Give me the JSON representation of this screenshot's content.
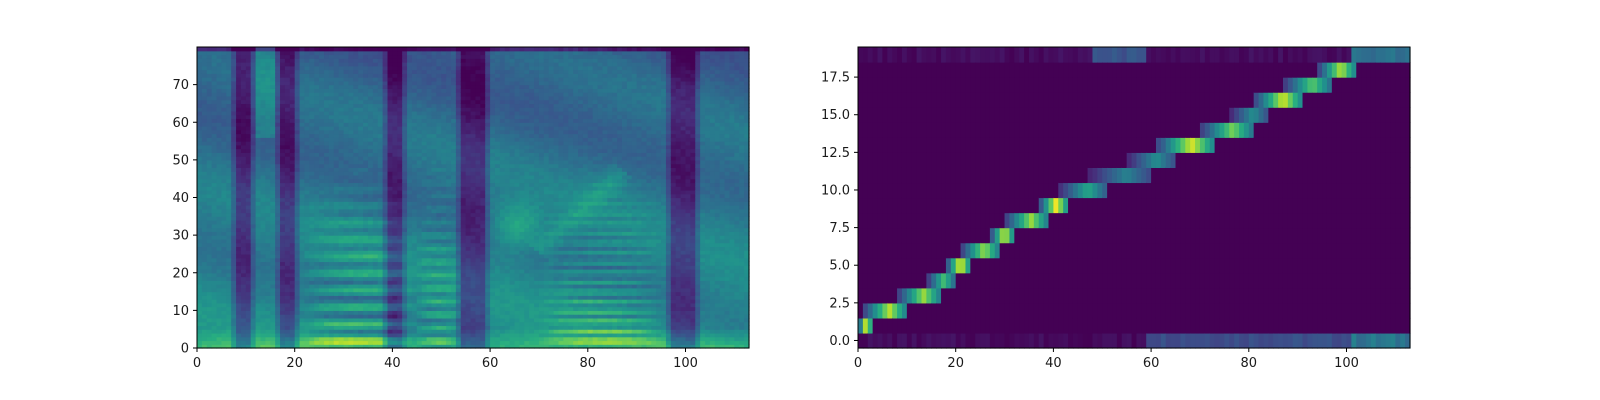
{
  "chart_data": [
    {
      "type": "heatmap",
      "name": "mel-spectrogram",
      "title": "",
      "xlabel": "",
      "ylabel": "",
      "xlim": [
        0,
        113
      ],
      "ylim": [
        0,
        80
      ],
      "n_cols": 113,
      "n_rows": 80,
      "colormap": "viridis",
      "xticks": [
        0,
        20,
        40,
        60,
        80,
        100
      ],
      "yticks": [
        0,
        10,
        20,
        30,
        40,
        50,
        60,
        70
      ],
      "xtick_labels": [
        "0",
        "20",
        "40",
        "60",
        "80",
        "100"
      ],
      "ytick_labels": [
        "0",
        "10",
        "20",
        "30",
        "40",
        "50",
        "60",
        "70"
      ],
      "dark_column_bands": [
        [
          8,
          10
        ],
        [
          17,
          19
        ],
        [
          39,
          41
        ],
        [
          54,
          58
        ],
        [
          97,
          101
        ]
      ],
      "voiced_segments": [
        {
          "x": [
            21,
            44
          ],
          "harmonic_spacing": 4.5,
          "strength": 0.95
        },
        {
          "x": [
            45,
            53
          ],
          "harmonic_spacing": 3.5,
          "strength": 0.7
        },
        {
          "x": [
            70,
            95
          ],
          "harmonic_spacing": 2.6,
          "strength": 0.75
        }
      ],
      "grid": false,
      "legend": "none"
    },
    {
      "type": "heatmap",
      "name": "alignment",
      "title": "",
      "xlabel": "",
      "ylabel": "",
      "xlim": [
        0,
        113
      ],
      "ylim": [
        -0.5,
        19.5
      ],
      "n_cols": 113,
      "n_rows": 20,
      "colormap": "viridis",
      "xticks": [
        0,
        20,
        40,
        60,
        80,
        100
      ],
      "yticks": [
        0,
        2.5,
        5,
        7.5,
        10,
        12.5,
        15,
        17.5
      ],
      "xtick_labels": [
        "0",
        "20",
        "40",
        "60",
        "80",
        "100"
      ],
      "ytick_labels": [
        "0.0",
        "2.5",
        "5.0",
        "7.5",
        "10.0",
        "12.5",
        "15.0",
        "17.5"
      ],
      "alignment_path": [
        {
          "row": 1,
          "x": [
            0,
            2
          ],
          "peak": 1.0
        },
        {
          "row": 2,
          "x": [
            1,
            9
          ],
          "peak": 0.9
        },
        {
          "row": 3,
          "x": [
            8,
            16
          ],
          "peak": 0.85
        },
        {
          "row": 4,
          "x": [
            14,
            19
          ],
          "peak": 0.7
        },
        {
          "row": 5,
          "x": [
            18,
            22
          ],
          "peak": 1.0
        },
        {
          "row": 6,
          "x": [
            21,
            28
          ],
          "peak": 0.85
        },
        {
          "row": 7,
          "x": [
            27,
            31
          ],
          "peak": 0.95
        },
        {
          "row": 8,
          "x": [
            30,
            38
          ],
          "peak": 0.85
        },
        {
          "row": 9,
          "x": [
            37,
            42
          ],
          "peak": 1.0
        },
        {
          "row": 10,
          "x": [
            41,
            50
          ],
          "peak": 0.6
        },
        {
          "row": 11,
          "x": [
            47,
            59
          ],
          "peak": 0.45
        },
        {
          "row": 12,
          "x": [
            55,
            64
          ],
          "peak": 0.5
        },
        {
          "row": 13,
          "x": [
            61,
            72
          ],
          "peak": 0.95
        },
        {
          "row": 14,
          "x": [
            70,
            80
          ],
          "peak": 0.8
        },
        {
          "row": 15,
          "x": [
            76,
            83
          ],
          "peak": 0.5
        },
        {
          "row": 16,
          "x": [
            81,
            90
          ],
          "peak": 0.95
        },
        {
          "row": 17,
          "x": [
            87,
            96
          ],
          "peak": 0.75
        },
        {
          "row": 18,
          "x": [
            94,
            101
          ],
          "peak": 0.9
        }
      ],
      "edge_rows": [
        {
          "row": 0,
          "x": [
            59,
            101
          ],
          "level": 0.28
        },
        {
          "row": 0,
          "x": [
            101,
            113
          ],
          "level": 0.45
        },
        {
          "row": 19,
          "x": [
            48,
            59
          ],
          "level": 0.3
        },
        {
          "row": 19,
          "x": [
            101,
            113
          ],
          "level": 0.45
        }
      ],
      "grid": false,
      "legend": "none"
    }
  ]
}
